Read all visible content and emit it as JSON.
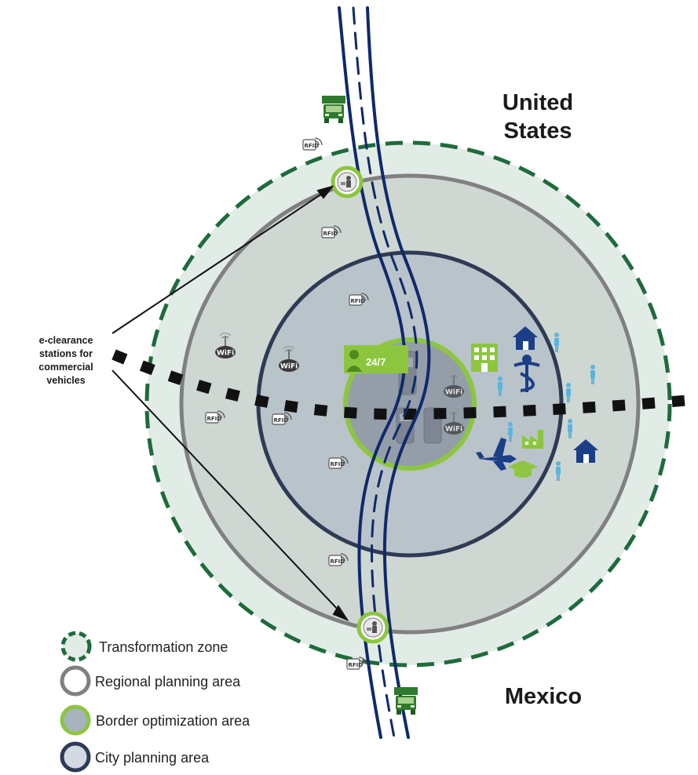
{
  "labels": {
    "united_states_line1": "United",
    "united_states_line2": "States",
    "mexico": "Mexico",
    "callout_line1": "e-clearance",
    "callout_line2": "stations for",
    "callout_line3": "commercial",
    "callout_line4": "vehicles",
    "open_hours": "24/7",
    "rfid": "RFID",
    "wifi": "WiFi"
  },
  "legend": [
    {
      "label": "Transformation zone",
      "fill": "#e2ece6",
      "stroke": "#1e6b3c",
      "dashed": true
    },
    {
      "label": "Regional planning area",
      "fill": "#ffffff",
      "stroke": "#808080",
      "dashed": false
    },
    {
      "label": "Border optimization area",
      "fill": "#a9b3be",
      "stroke": "#8cc63f",
      "dashed": false
    },
    {
      "label": "City planning area",
      "fill": "#d4dae2",
      "stroke": "#2e3b55",
      "dashed": false
    }
  ],
  "colors": {
    "transformation_zone_stroke": "#1e6b3c",
    "regional_stroke": "#808080",
    "city_stroke": "#2e3b55",
    "border_opt_stroke": "#8cc63f",
    "road": "#0f2a6b",
    "truck": "#2d7a2d",
    "facility_green": "#8cc63f",
    "building_blue": "#1b3f86",
    "person_blue": "#5ab4dc"
  },
  "icons": [
    "truck-icon",
    "rfid-icon",
    "customs-officer-icon",
    "wifi-icon",
    "person-24-7-icon",
    "hospital-building-icon",
    "house-icon",
    "medical-caduceus-icon",
    "airplane-icon",
    "factory-icon",
    "graduation-cap-icon",
    "person-icon",
    "kiosk-icon"
  ]
}
